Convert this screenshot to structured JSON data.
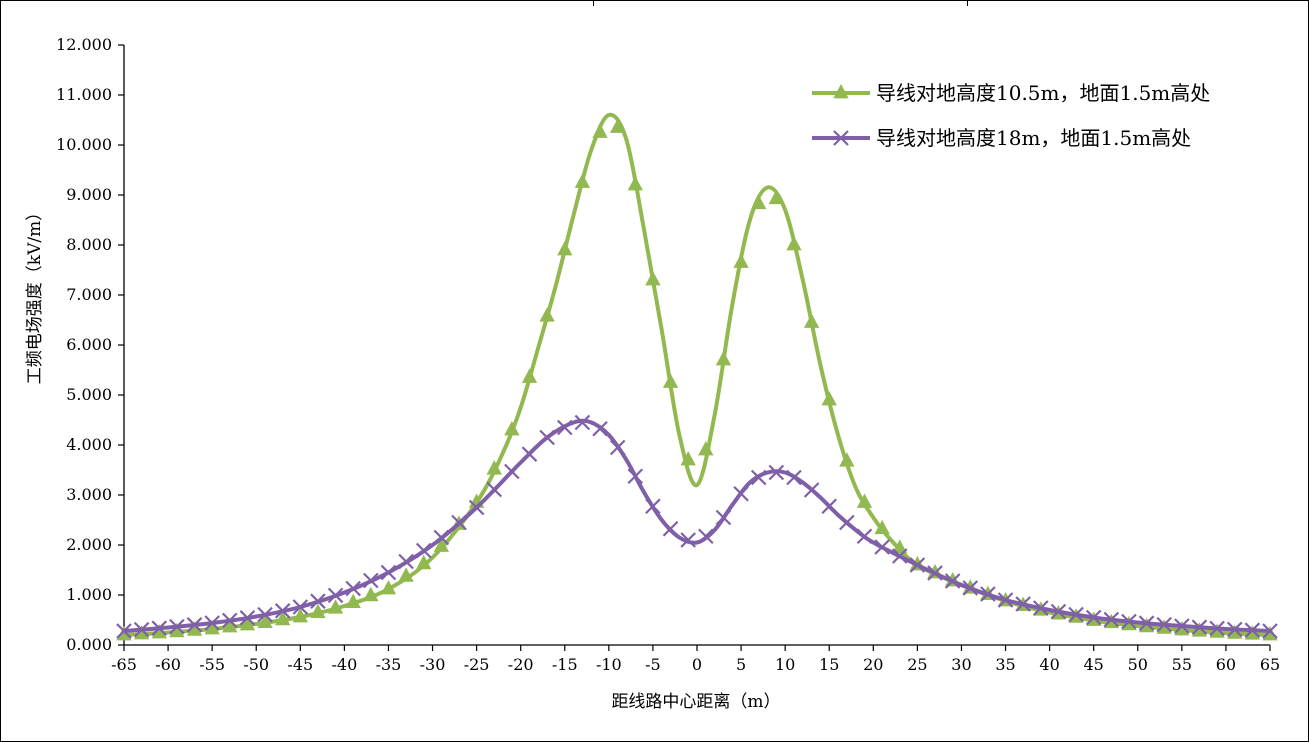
{
  "chart_data": {
    "type": "line",
    "title": "",
    "xlabel": "距线路中心距离（m）",
    "ylabel": "工频电场强度（kV/m）",
    "xlim": [
      -65,
      65
    ],
    "ylim": [
      0,
      12
    ],
    "x_ticks": [
      -65,
      -60,
      -55,
      -50,
      -45,
      -40,
      -35,
      -30,
      -25,
      -20,
      -15,
      -10,
      -5,
      0,
      5,
      10,
      15,
      20,
      25,
      30,
      35,
      40,
      45,
      50,
      55,
      60,
      65
    ],
    "y_ticks": [
      "0.000",
      "1.000",
      "2.000",
      "3.000",
      "4.000",
      "5.000",
      "6.000",
      "7.000",
      "8.000",
      "9.000",
      "10.000",
      "11.000",
      "12.000"
    ],
    "legend_position": "top-right",
    "series": [
      {
        "name": "导线对地高度10.5m，地面1.5m高处",
        "color": "#92b94f",
        "marker": "triangle",
        "x": [
          -65,
          -60,
          -55,
          -50,
          -45,
          -40,
          -35,
          -30,
          -25,
          -22,
          -20,
          -18,
          -16,
          -14,
          -12,
          -10,
          -8,
          -6,
          -4,
          -2,
          0,
          2,
          4,
          6,
          8,
          10,
          12,
          14,
          16,
          18,
          20,
          22,
          25,
          30,
          35,
          40,
          45,
          50,
          55,
          60,
          65
        ],
        "y": [
          0.2,
          0.25,
          0.32,
          0.42,
          0.56,
          0.78,
          1.12,
          1.75,
          2.85,
          3.85,
          4.75,
          5.95,
          7.2,
          8.6,
          9.9,
          10.6,
          10.1,
          8.3,
          6.3,
          4.2,
          3.2,
          4.6,
          6.8,
          8.5,
          9.15,
          8.7,
          7.3,
          5.6,
          4.2,
          3.15,
          2.55,
          2.1,
          1.6,
          1.2,
          0.88,
          0.65,
          0.49,
          0.38,
          0.3,
          0.24,
          0.2
        ]
      },
      {
        "name": "导线对地高度18m，地面1.5m高处",
        "color": "#7f5fa8",
        "marker": "x",
        "x": [
          -65,
          -60,
          -55,
          -50,
          -45,
          -40,
          -35,
          -30,
          -25,
          -20,
          -17,
          -14,
          -12,
          -10,
          -8,
          -6,
          -4,
          -2,
          0,
          2,
          4,
          6,
          8,
          10,
          12,
          14,
          16,
          18,
          20,
          25,
          30,
          35,
          40,
          45,
          50,
          55,
          60,
          65
        ],
        "y": [
          0.28,
          0.35,
          0.44,
          0.57,
          0.76,
          1.05,
          1.45,
          2.0,
          2.75,
          3.65,
          4.15,
          4.45,
          4.45,
          4.2,
          3.7,
          3.05,
          2.5,
          2.15,
          2.05,
          2.3,
          2.8,
          3.25,
          3.45,
          3.45,
          3.25,
          2.95,
          2.6,
          2.3,
          2.05,
          1.6,
          1.2,
          0.9,
          0.7,
          0.55,
          0.45,
          0.38,
          0.32,
          0.28
        ]
      }
    ]
  }
}
